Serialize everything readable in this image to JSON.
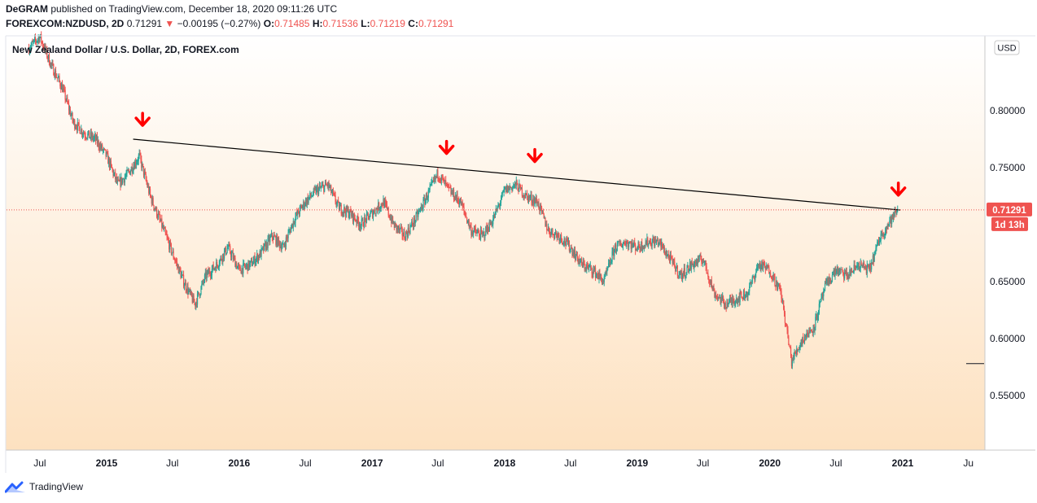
{
  "header": {
    "author": "DeGRAM",
    "published": "published on TradingView.com, December 18, 2020 09:11:26 UTC",
    "symbol": "FOREXCOM:NZDUSD, 2D",
    "last": "0.71291",
    "arrow": "▼",
    "change": "−0.00195 (−0.27%)",
    "o_label": "O:",
    "o_value": "0.71485",
    "h_label": "H:",
    "h_value": "0.71536",
    "l_label": "L:",
    "l_value": "0.71219",
    "c_label": "C:",
    "c_value": "0.71291"
  },
  "footer": {
    "brand": "TradingView"
  },
  "colors": {
    "up": "#26a69a",
    "down": "#ef5350",
    "arrow": "#ff0000",
    "trendline": "#000000",
    "price_tag": "#ef5350",
    "bg_top": "#ffffff",
    "bg_bottom": "#fde1c0"
  },
  "chart_data": {
    "type": "line",
    "title": "New Zealand Dollar / U.S. Dollar, 2D, FOREX.com",
    "currency": "USD",
    "price_axis_side": "right",
    "x_tick_labels": [
      "Jul",
      "2015",
      "Jul",
      "2016",
      "Jul",
      "2017",
      "Jul",
      "2018",
      "Jul",
      "2019",
      "Jul",
      "2020",
      "Jul",
      "2021",
      "Ju"
    ],
    "y_tick_labels": [
      "0.80000",
      "0.75000",
      "0.65000",
      "0.60000",
      "0.55000"
    ],
    "ylim": [
      0.52,
      0.87
    ],
    "series": [
      {
        "values": [
          [
            "2014-06-01",
            0.855
          ],
          [
            "2014-07-01",
            0.865
          ],
          [
            "2014-08-01",
            0.84
          ],
          [
            "2014-09-01",
            0.82
          ],
          [
            "2014-10-01",
            0.79
          ],
          [
            "2014-11-01",
            0.78
          ],
          [
            "2014-12-01",
            0.775
          ],
          [
            "2015-01-01",
            0.76
          ],
          [
            "2015-02-01",
            0.735
          ],
          [
            "2015-03-01",
            0.745
          ],
          [
            "2015-04-01",
            0.76
          ],
          [
            "2015-05-01",
            0.725
          ],
          [
            "2015-06-01",
            0.7
          ],
          [
            "2015-07-01",
            0.675
          ],
          [
            "2015-08-01",
            0.65
          ],
          [
            "2015-09-01",
            0.63
          ],
          [
            "2015-10-01",
            0.655
          ],
          [
            "2015-11-01",
            0.665
          ],
          [
            "2015-12-01",
            0.68
          ],
          [
            "2016-01-01",
            0.66
          ],
          [
            "2016-02-01",
            0.665
          ],
          [
            "2016-03-01",
            0.675
          ],
          [
            "2016-04-01",
            0.69
          ],
          [
            "2016-05-01",
            0.68
          ],
          [
            "2016-06-01",
            0.705
          ],
          [
            "2016-07-01",
            0.72
          ],
          [
            "2016-08-01",
            0.73
          ],
          [
            "2016-09-01",
            0.735
          ],
          [
            "2016-10-01",
            0.715
          ],
          [
            "2016-11-01",
            0.71
          ],
          [
            "2016-12-01",
            0.7
          ],
          [
            "2017-01-01",
            0.71
          ],
          [
            "2017-02-01",
            0.72
          ],
          [
            "2017-03-01",
            0.7
          ],
          [
            "2017-04-01",
            0.69
          ],
          [
            "2017-05-01",
            0.705
          ],
          [
            "2017-06-01",
            0.725
          ],
          [
            "2017-07-01",
            0.745
          ],
          [
            "2017-08-01",
            0.73
          ],
          [
            "2017-09-01",
            0.72
          ],
          [
            "2017-10-01",
            0.695
          ],
          [
            "2017-11-01",
            0.69
          ],
          [
            "2017-12-01",
            0.705
          ],
          [
            "2018-01-01",
            0.73
          ],
          [
            "2018-02-01",
            0.735
          ],
          [
            "2018-03-01",
            0.725
          ],
          [
            "2018-04-01",
            0.72
          ],
          [
            "2018-05-01",
            0.695
          ],
          [
            "2018-06-01",
            0.69
          ],
          [
            "2018-07-01",
            0.68
          ],
          [
            "2018-08-01",
            0.665
          ],
          [
            "2018-09-01",
            0.66
          ],
          [
            "2018-10-01",
            0.65
          ],
          [
            "2018-11-01",
            0.68
          ],
          [
            "2018-12-01",
            0.685
          ],
          [
            "2019-01-01",
            0.68
          ],
          [
            "2019-02-01",
            0.685
          ],
          [
            "2019-03-01",
            0.685
          ],
          [
            "2019-04-01",
            0.67
          ],
          [
            "2019-05-01",
            0.655
          ],
          [
            "2019-06-01",
            0.665
          ],
          [
            "2019-07-01",
            0.67
          ],
          [
            "2019-08-01",
            0.64
          ],
          [
            "2019-09-01",
            0.63
          ],
          [
            "2019-10-01",
            0.635
          ],
          [
            "2019-11-01",
            0.64
          ],
          [
            "2019-12-01",
            0.665
          ],
          [
            "2020-01-01",
            0.66
          ],
          [
            "2020-02-01",
            0.64
          ],
          [
            "2020-03-01",
            0.58
          ],
          [
            "2020-04-01",
            0.6
          ],
          [
            "2020-05-01",
            0.61
          ],
          [
            "2020-06-01",
            0.645
          ],
          [
            "2020-07-01",
            0.66
          ],
          [
            "2020-08-01",
            0.655
          ],
          [
            "2020-09-01",
            0.665
          ],
          [
            "2020-10-01",
            0.66
          ],
          [
            "2020-11-01",
            0.69
          ],
          [
            "2020-12-18",
            0.71291
          ]
        ]
      }
    ],
    "trendline": [
      [
        "2015-03-15",
        0.775
      ],
      [
        "2020-12-25",
        0.7128
      ]
    ],
    "arrows": [
      "2015-04-10",
      "2017-07-25",
      "2018-03-25",
      "2020-12-20"
    ],
    "last_price_label": "0.71291",
    "countdown_label": "1d 13h",
    "crosshair_y": 0.578,
    "legend": "none",
    "grid": false
  }
}
